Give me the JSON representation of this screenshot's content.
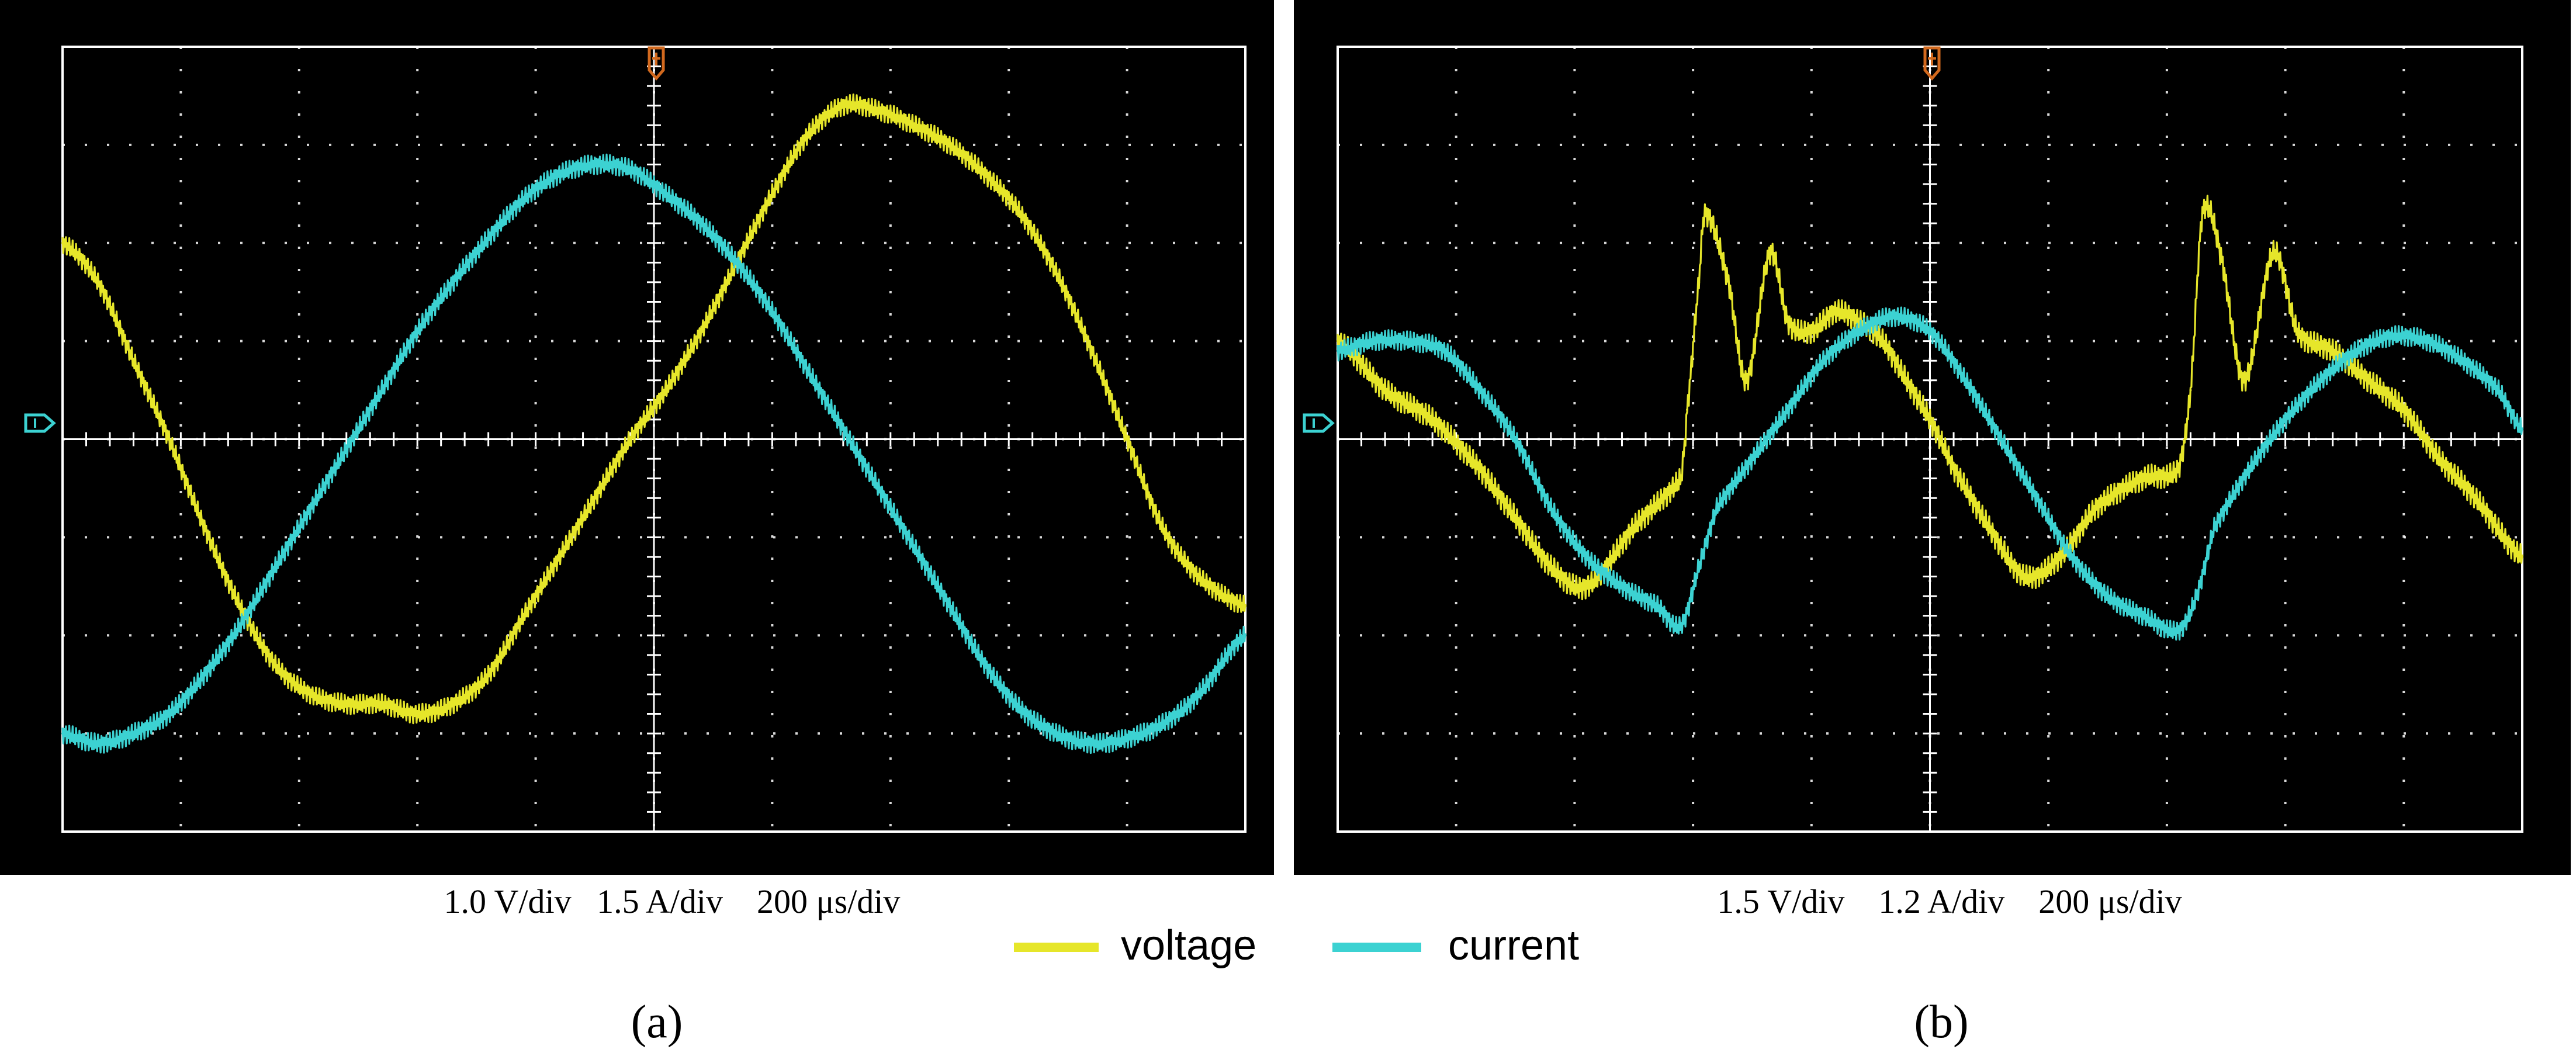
{
  "colors": {
    "voltage": "#e6e62a",
    "current": "#3cd2d2",
    "screen_background": "#000000",
    "grid": "#ffffff",
    "trigger_marker": "#d2691e",
    "ground_marker": "#3cd2d2"
  },
  "legend": {
    "voltage_label": "voltage",
    "current_label": "current"
  },
  "chart_data": [
    {
      "type": "line",
      "panel_label": "(a)",
      "scale_text": "1.0 V/div   1.5 A/div    200 μs/div",
      "x_unit": "div",
      "y_unit": "div",
      "xlim": [
        0,
        10
      ],
      "ylim": [
        -4,
        4
      ],
      "grid": true,
      "series": [
        {
          "name": "voltage",
          "color_key": "voltage",
          "noise_amplitude_div": 0.1,
          "x": [
            0,
            0.3,
            0.6,
            0.9,
            1.2,
            1.5,
            1.8,
            2.1,
            2.4,
            2.7,
            3.0,
            3.3,
            3.6,
            3.9,
            4.2,
            4.5,
            4.8,
            5.1,
            5.4,
            5.7,
            6.0,
            6.3,
            6.6,
            6.9,
            7.2,
            7.5,
            7.8,
            8.1,
            8.4,
            8.7,
            9.0,
            9.3,
            9.6,
            10.0
          ],
          "y": [
            2.0,
            1.6,
            0.8,
            0.0,
            -0.9,
            -1.7,
            -2.3,
            -2.6,
            -2.7,
            -2.7,
            -2.8,
            -2.7,
            -2.4,
            -1.8,
            -1.2,
            -0.6,
            0.0,
            0.5,
            1.1,
            1.8,
            2.5,
            3.1,
            3.4,
            3.35,
            3.2,
            3.0,
            2.7,
            2.3,
            1.7,
            0.9,
            0.0,
            -0.9,
            -1.4,
            -1.7
          ]
        },
        {
          "name": "current",
          "color_key": "current",
          "noise_amplitude_div": 0.1,
          "x": [
            0,
            0.3,
            0.6,
            0.9,
            1.2,
            1.5,
            1.8,
            2.1,
            2.4,
            2.7,
            3.0,
            3.3,
            3.6,
            3.9,
            4.2,
            4.5,
            4.8,
            5.1,
            5.4,
            5.7,
            6.0,
            6.3,
            6.6,
            6.9,
            7.2,
            7.5,
            7.8,
            8.1,
            8.4,
            8.7,
            9.0,
            9.3,
            9.6,
            10.0
          ],
          "y": [
            -3.0,
            -3.1,
            -3.0,
            -2.8,
            -2.4,
            -1.9,
            -1.3,
            -0.7,
            -0.1,
            0.5,
            1.1,
            1.6,
            2.05,
            2.45,
            2.7,
            2.8,
            2.75,
            2.5,
            2.2,
            1.8,
            1.3,
            0.7,
            0.1,
            -0.5,
            -1.1,
            -1.7,
            -2.3,
            -2.75,
            -3.0,
            -3.1,
            -3.05,
            -2.9,
            -2.6,
            -2.0
          ]
        }
      ]
    },
    {
      "type": "line",
      "panel_label": "(b)",
      "scale_text": "1.5 V/div    1.2 A/div    200 μs/div",
      "x_unit": "div",
      "y_unit": "div",
      "xlim": [
        0,
        10
      ],
      "ylim": [
        -4,
        4
      ],
      "grid": true,
      "series": [
        {
          "name": "voltage",
          "color_key": "voltage",
          "noise_amplitude_div": 0.12,
          "x": [
            0,
            0.4,
            0.8,
            1.2,
            1.5,
            1.8,
            2.1,
            2.5,
            2.9,
            2.95,
            3.05,
            3.1,
            3.3,
            3.45,
            3.65,
            3.8,
            4.0,
            4.2,
            4.4,
            4.6,
            4.8,
            5.0,
            5.2,
            5.5,
            5.8,
            6.1,
            6.4,
            6.8,
            7.1,
            7.2,
            7.3,
            7.45,
            7.65,
            7.9,
            8.1,
            8.4,
            8.7,
            9.0,
            9.3,
            9.6,
            10.0
          ],
          "y": [
            1.0,
            0.5,
            0.2,
            -0.3,
            -0.8,
            -1.3,
            -1.5,
            -0.9,
            -0.4,
            0.3,
            1.6,
            2.3,
            1.6,
            0.6,
            1.9,
            1.2,
            1.1,
            1.3,
            1.2,
            1.0,
            0.6,
            0.2,
            -0.3,
            -0.9,
            -1.4,
            -1.2,
            -0.7,
            -0.4,
            -0.3,
            0.5,
            2.3,
            1.9,
            0.6,
            1.9,
            1.1,
            0.9,
            0.6,
            0.3,
            -0.2,
            -0.6,
            -1.2
          ]
        },
        {
          "name": "current",
          "color_key": "current",
          "noise_amplitude_div": 0.1,
          "x": [
            0,
            0.3,
            0.6,
            0.9,
            1.2,
            1.5,
            1.8,
            2.1,
            2.4,
            2.7,
            2.9,
            3.05,
            3.2,
            3.5,
            3.8,
            4.1,
            4.4,
            4.7,
            5.0,
            5.3,
            5.6,
            5.9,
            6.2,
            6.5,
            6.8,
            7.1,
            7.25,
            7.4,
            7.7,
            8.0,
            8.3,
            8.6,
            8.9,
            9.2,
            9.5,
            9.8,
            10.0
          ],
          "y": [
            0.9,
            1.0,
            1.0,
            0.9,
            0.5,
            0.0,
            -0.7,
            -1.2,
            -1.5,
            -1.7,
            -1.9,
            -1.3,
            -0.7,
            -0.2,
            0.3,
            0.8,
            1.1,
            1.25,
            1.1,
            0.6,
            0.0,
            -0.6,
            -1.2,
            -1.6,
            -1.8,
            -1.95,
            -1.6,
            -0.9,
            -0.3,
            0.2,
            0.6,
            0.9,
            1.05,
            1.0,
            0.8,
            0.5,
            0.1
          ]
        }
      ]
    }
  ]
}
